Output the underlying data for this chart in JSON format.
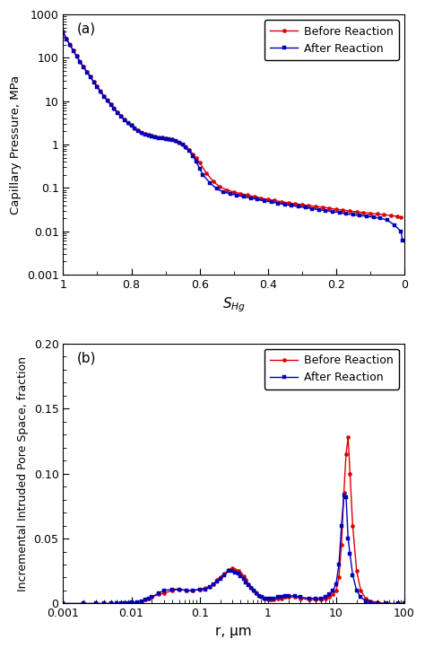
{
  "panel_a": {
    "label": "(a)",
    "xlabel": "$S_{Hg}$",
    "ylabel": "Capillary Pressure, MPa",
    "xlim": [
      1.0,
      0.0
    ],
    "ylim": [
      0.001,
      1000
    ],
    "yticks": [
      0.001,
      0.01,
      0.1,
      1,
      10,
      100,
      1000
    ],
    "ytick_labels": [
      "0.001",
      "0.01",
      "0.1",
      "1",
      "10",
      "100",
      "1000"
    ],
    "xticks": [
      1.0,
      0.8,
      0.6,
      0.4,
      0.2,
      0.0
    ],
    "xtick_labels": [
      "1",
      "0.8",
      "0.6",
      "0.4",
      "0.2",
      "0"
    ],
    "legend_labels": [
      "Before Reaction",
      "After Reaction"
    ],
    "before_x": [
      1.0,
      0.99,
      0.98,
      0.97,
      0.96,
      0.95,
      0.94,
      0.93,
      0.92,
      0.91,
      0.9,
      0.89,
      0.88,
      0.87,
      0.86,
      0.85,
      0.84,
      0.83,
      0.82,
      0.81,
      0.8,
      0.79,
      0.78,
      0.77,
      0.76,
      0.75,
      0.74,
      0.73,
      0.72,
      0.71,
      0.7,
      0.69,
      0.68,
      0.67,
      0.66,
      0.65,
      0.64,
      0.63,
      0.62,
      0.61,
      0.6,
      0.58,
      0.56,
      0.54,
      0.52,
      0.5,
      0.48,
      0.46,
      0.44,
      0.42,
      0.4,
      0.38,
      0.36,
      0.34,
      0.32,
      0.3,
      0.28,
      0.26,
      0.24,
      0.22,
      0.2,
      0.18,
      0.16,
      0.14,
      0.12,
      0.1,
      0.08,
      0.06,
      0.04,
      0.02,
      0.01
    ],
    "before_y": [
      400,
      280,
      200,
      150,
      110,
      82,
      62,
      48,
      37,
      28,
      22,
      17,
      13,
      10.5,
      8.5,
      6.8,
      5.5,
      4.5,
      3.8,
      3.2,
      2.8,
      2.4,
      2.1,
      1.9,
      1.75,
      1.65,
      1.58,
      1.52,
      1.48,
      1.44,
      1.4,
      1.36,
      1.3,
      1.22,
      1.12,
      1.0,
      0.88,
      0.75,
      0.6,
      0.48,
      0.38,
      0.22,
      0.14,
      0.105,
      0.09,
      0.08,
      0.074,
      0.068,
      0.063,
      0.058,
      0.054,
      0.051,
      0.048,
      0.045,
      0.043,
      0.041,
      0.039,
      0.037,
      0.036,
      0.034,
      0.032,
      0.031,
      0.029,
      0.028,
      0.027,
      0.026,
      0.025,
      0.024,
      0.023,
      0.022,
      0.021
    ],
    "after_x": [
      1.0,
      0.99,
      0.98,
      0.97,
      0.96,
      0.95,
      0.94,
      0.93,
      0.92,
      0.91,
      0.9,
      0.89,
      0.88,
      0.87,
      0.86,
      0.85,
      0.84,
      0.83,
      0.82,
      0.81,
      0.8,
      0.79,
      0.78,
      0.77,
      0.76,
      0.75,
      0.74,
      0.73,
      0.72,
      0.71,
      0.7,
      0.69,
      0.68,
      0.67,
      0.66,
      0.65,
      0.64,
      0.63,
      0.62,
      0.61,
      0.6,
      0.59,
      0.57,
      0.55,
      0.53,
      0.51,
      0.49,
      0.47,
      0.45,
      0.43,
      0.41,
      0.39,
      0.37,
      0.35,
      0.33,
      0.31,
      0.29,
      0.27,
      0.25,
      0.23,
      0.21,
      0.19,
      0.17,
      0.15,
      0.13,
      0.11,
      0.09,
      0.07,
      0.05,
      0.03,
      0.01,
      0.005
    ],
    "after_y": [
      380,
      270,
      195,
      145,
      105,
      80,
      60,
      46,
      36,
      27,
      21,
      16.5,
      12.8,
      10.2,
      8.2,
      6.6,
      5.3,
      4.4,
      3.7,
      3.1,
      2.7,
      2.35,
      2.05,
      1.85,
      1.7,
      1.6,
      1.53,
      1.47,
      1.43,
      1.39,
      1.35,
      1.31,
      1.26,
      1.19,
      1.1,
      0.98,
      0.85,
      0.7,
      0.54,
      0.4,
      0.28,
      0.2,
      0.13,
      0.095,
      0.08,
      0.073,
      0.067,
      0.062,
      0.058,
      0.054,
      0.05,
      0.047,
      0.044,
      0.041,
      0.039,
      0.037,
      0.035,
      0.033,
      0.031,
      0.03,
      0.028,
      0.027,
      0.025,
      0.024,
      0.023,
      0.022,
      0.021,
      0.02,
      0.018,
      0.014,
      0.01,
      0.006
    ]
  },
  "panel_b": {
    "label": "(b)",
    "xlabel": "r, μm",
    "ylabel": "Incremental Intruded Pore Space, fraction",
    "xlim": [
      0.001,
      100
    ],
    "ylim": [
      0.0,
      0.2
    ],
    "yticks": [
      0.0,
      0.05,
      0.1,
      0.15,
      0.2
    ],
    "ytick_labels": [
      "0",
      "0.05",
      "0.10",
      "0.15",
      "0.20"
    ],
    "legend_labels": [
      "Before Reaction",
      "After Reaction"
    ],
    "before_r": [
      0.001,
      0.002,
      0.003,
      0.004,
      0.005,
      0.006,
      0.007,
      0.008,
      0.009,
      0.01,
      0.012,
      0.014,
      0.016,
      0.018,
      0.02,
      0.025,
      0.03,
      0.04,
      0.05,
      0.065,
      0.08,
      0.1,
      0.12,
      0.14,
      0.16,
      0.18,
      0.2,
      0.23,
      0.27,
      0.3,
      0.33,
      0.37,
      0.4,
      0.44,
      0.48,
      0.52,
      0.57,
      0.62,
      0.68,
      0.75,
      0.82,
      0.9,
      1.0,
      1.1,
      1.2,
      1.4,
      1.6,
      1.8,
      2.0,
      2.5,
      3.0,
      4.0,
      5.0,
      6.0,
      7.0,
      8.0,
      9.0,
      10.0,
      11.0,
      12.0,
      13.0,
      14.0,
      15.0,
      16.0,
      17.5,
      20.0,
      23.0,
      27.0,
      32.0,
      40.0,
      55.0,
      80.0,
      100.0
    ],
    "before_y": [
      0.0,
      0.0,
      0.0,
      0.0,
      0.0,
      0.0,
      0.0,
      0.0,
      0.0,
      0.001,
      0.001,
      0.002,
      0.003,
      0.004,
      0.005,
      0.007,
      0.008,
      0.01,
      0.011,
      0.01,
      0.01,
      0.011,
      0.012,
      0.013,
      0.015,
      0.018,
      0.02,
      0.023,
      0.026,
      0.027,
      0.026,
      0.025,
      0.023,
      0.021,
      0.018,
      0.015,
      0.012,
      0.01,
      0.008,
      0.006,
      0.005,
      0.004,
      0.003,
      0.003,
      0.003,
      0.004,
      0.004,
      0.005,
      0.005,
      0.005,
      0.004,
      0.003,
      0.003,
      0.003,
      0.004,
      0.005,
      0.007,
      0.01,
      0.02,
      0.045,
      0.085,
      0.115,
      0.128,
      0.1,
      0.06,
      0.025,
      0.01,
      0.004,
      0.002,
      0.001,
      0.0,
      0.0,
      0.0
    ],
    "after_r": [
      0.001,
      0.002,
      0.003,
      0.004,
      0.005,
      0.006,
      0.007,
      0.008,
      0.009,
      0.01,
      0.012,
      0.014,
      0.016,
      0.018,
      0.02,
      0.025,
      0.03,
      0.04,
      0.05,
      0.065,
      0.08,
      0.1,
      0.12,
      0.14,
      0.16,
      0.18,
      0.2,
      0.23,
      0.27,
      0.3,
      0.33,
      0.37,
      0.4,
      0.44,
      0.48,
      0.52,
      0.57,
      0.62,
      0.68,
      0.75,
      0.82,
      0.9,
      1.0,
      1.1,
      1.2,
      1.4,
      1.6,
      1.8,
      2.0,
      2.5,
      3.0,
      4.0,
      5.0,
      6.0,
      7.0,
      8.0,
      9.0,
      10.0,
      11.0,
      12.0,
      13.0,
      14.0,
      15.0,
      16.0,
      17.5,
      20.0,
      23.0,
      27.0,
      32.0,
      40.0,
      55.0,
      80.0,
      100.0
    ],
    "after_y": [
      0.0,
      0.0,
      0.0,
      0.0,
      0.0,
      0.0,
      0.0,
      0.0,
      0.0,
      0.001,
      0.001,
      0.002,
      0.003,
      0.004,
      0.005,
      0.008,
      0.01,
      0.011,
      0.011,
      0.01,
      0.01,
      0.011,
      0.011,
      0.013,
      0.015,
      0.017,
      0.019,
      0.022,
      0.025,
      0.025,
      0.024,
      0.023,
      0.021,
      0.019,
      0.016,
      0.014,
      0.012,
      0.01,
      0.008,
      0.006,
      0.005,
      0.004,
      0.004,
      0.004,
      0.004,
      0.005,
      0.005,
      0.006,
      0.006,
      0.006,
      0.005,
      0.004,
      0.004,
      0.004,
      0.005,
      0.007,
      0.01,
      0.015,
      0.03,
      0.06,
      0.083,
      0.082,
      0.05,
      0.038,
      0.022,
      0.01,
      0.005,
      0.002,
      0.001,
      0.0,
      0.0,
      0.0,
      0.0
    ]
  },
  "colors": {
    "before": "#dd0000",
    "after": "#0000bb"
  },
  "linewidth": 1.0,
  "markersize_a": 3.0,
  "markersize_b": 3.0
}
